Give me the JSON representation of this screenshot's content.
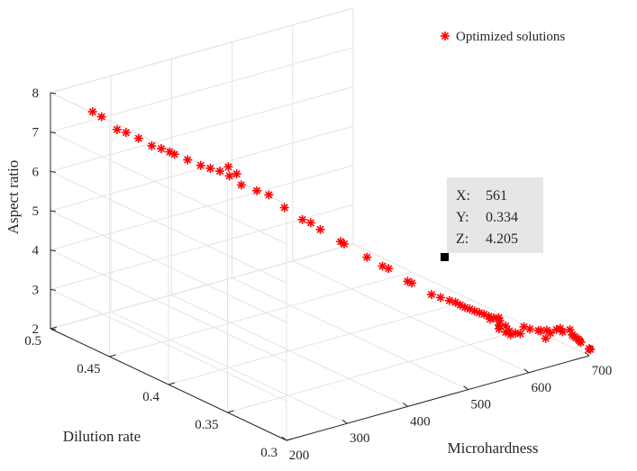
{
  "chart_data": {
    "type": "scatter",
    "dimensions": 3,
    "title": "",
    "xlabel": "Microhardness",
    "ylabel": "Dilution rate",
    "zlabel": "Aspect ratio",
    "xlim": [
      200,
      700
    ],
    "ylim": [
      0.3,
      0.5
    ],
    "zlim": [
      2,
      8
    ],
    "xticks": [
      "200",
      "300",
      "400",
      "500",
      "600",
      "700"
    ],
    "yticks": [
      "0.3",
      "0.35",
      "0.4",
      "0.45",
      "0.5"
    ],
    "zticks": [
      "2",
      "3",
      "4",
      "5",
      "6",
      "7",
      "8"
    ],
    "grid": true,
    "legend": {
      "position": "top-right",
      "entries": [
        "Optimized solutions"
      ]
    },
    "marker": "asterisk",
    "series": [
      {
        "name": "Optimized solutions",
        "color": "#ff0000",
        "points": [
          [
            215,
            0.472,
            7.85
          ],
          [
            222,
            0.468,
            7.75
          ],
          [
            236,
            0.462,
            7.45
          ],
          [
            243,
            0.458,
            7.4
          ],
          [
            252,
            0.452,
            7.3
          ],
          [
            262,
            0.446,
            7.15
          ],
          [
            270,
            0.442,
            7.1
          ],
          [
            276,
            0.438,
            7.05
          ],
          [
            280,
            0.436,
            7.0
          ],
          [
            290,
            0.43,
            6.9
          ],
          [
            300,
            0.424,
            6.8
          ],
          [
            308,
            0.42,
            6.75
          ],
          [
            316,
            0.416,
            6.7
          ],
          [
            324,
            0.412,
            6.6
          ],
          [
            330,
            0.416,
            6.75
          ],
          [
            336,
            0.412,
            6.6
          ],
          [
            332,
            0.406,
            6.42
          ],
          [
            346,
            0.4,
            6.3
          ],
          [
            358,
            0.396,
            6.2
          ],
          [
            372,
            0.39,
            5.9
          ],
          [
            386,
            0.382,
            5.65
          ],
          [
            392,
            0.378,
            5.6
          ],
          [
            400,
            0.374,
            5.45
          ],
          [
            418,
            0.366,
            5.18
          ],
          [
            420,
            0.364,
            5.14
          ],
          [
            442,
            0.356,
            4.82
          ],
          [
            456,
            0.35,
            4.62
          ],
          [
            462,
            0.348,
            4.56
          ],
          [
            478,
            0.34,
            4.28
          ],
          [
            481,
            0.338,
            4.25
          ],
          [
            498,
            0.33,
            4.0
          ],
          [
            505,
            0.326,
            3.95
          ],
          [
            512,
            0.322,
            3.9
          ],
          [
            518,
            0.32,
            3.86
          ],
          [
            522,
            0.318,
            3.8
          ],
          [
            526,
            0.316,
            3.75
          ],
          [
            530,
            0.314,
            3.72
          ],
          [
            534,
            0.312,
            3.68
          ],
          [
            538,
            0.31,
            3.65
          ],
          [
            542,
            0.308,
            3.62
          ],
          [
            546,
            0.306,
            3.58
          ],
          [
            550,
            0.304,
            3.55
          ],
          [
            554,
            0.302,
            3.55
          ],
          [
            548,
            0.306,
            3.5
          ],
          [
            556,
            0.302,
            3.48
          ],
          [
            558,
            0.304,
            3.52
          ],
          [
            551,
            0.3,
            3.42
          ],
          [
            562,
            0.3,
            3.35
          ],
          [
            555,
            0.302,
            3.28
          ],
          [
            568,
            0.3,
            3.2
          ],
          [
            566,
            0.302,
            3.15
          ],
          [
            578,
            0.3,
            3.1
          ],
          [
            574,
            0.302,
            3.05
          ],
          [
            586,
            0.3,
            3.05
          ],
          [
            592,
            0.3,
            3.2
          ],
          [
            602,
            0.3,
            3.1
          ],
          [
            616,
            0.3,
            3.0
          ],
          [
            620,
            0.3,
            2.98
          ],
          [
            630,
            0.3,
            2.95
          ],
          [
            628,
            0.3,
            2.75
          ],
          [
            636,
            0.3,
            2.85
          ],
          [
            646,
            0.3,
            2.9
          ],
          [
            652,
            0.3,
            2.9
          ],
          [
            656,
            0.3,
            2.8
          ],
          [
            668,
            0.3,
            2.8
          ],
          [
            672,
            0.3,
            2.65
          ],
          [
            675,
            0.3,
            2.6
          ],
          [
            678,
            0.3,
            2.55
          ],
          [
            682,
            0.3,
            2.5
          ],
          [
            684,
            0.3,
            2.45
          ],
          [
            686,
            0.3,
            2.4
          ],
          [
            700,
            0.3,
            2.18
          ],
          [
            702,
            0.3,
            2.15
          ]
        ]
      }
    ],
    "datatip": {
      "x_label": "X:",
      "x_value": "561",
      "y_label": "Y:",
      "y_value": "0.334",
      "z_label": "Z:",
      "z_value": "4.205"
    }
  }
}
